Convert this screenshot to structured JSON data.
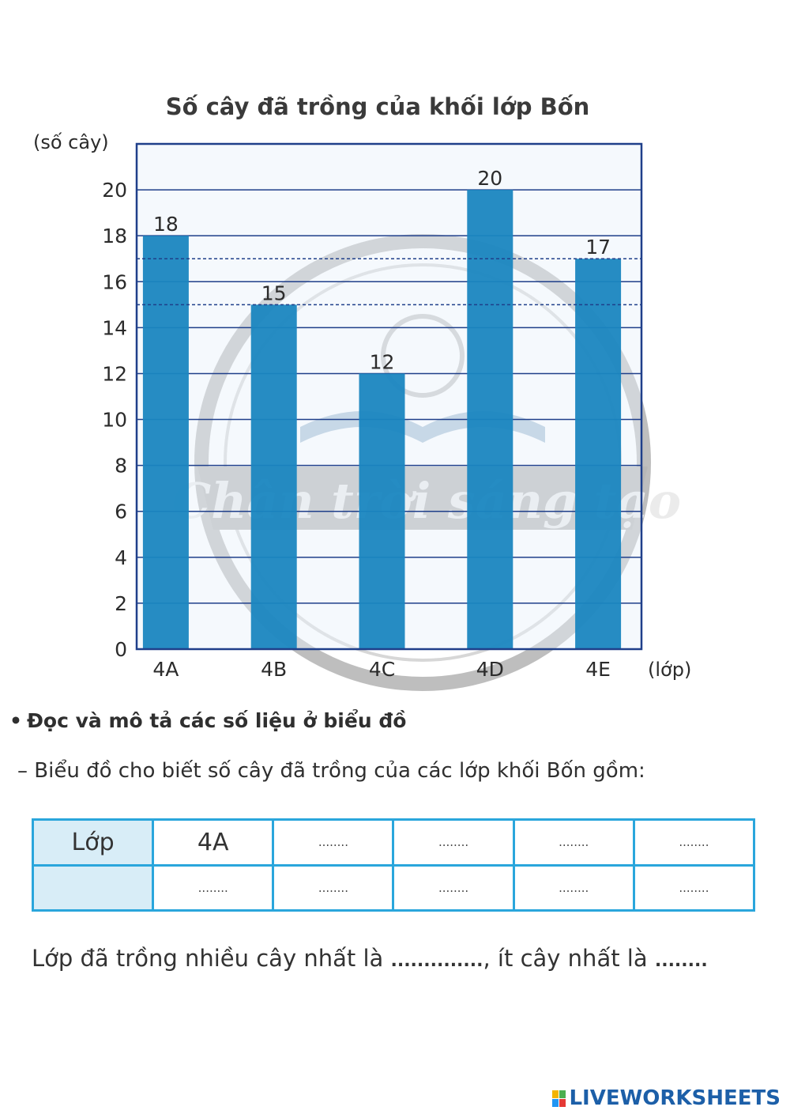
{
  "chart_data": {
    "type": "bar",
    "title": "Số cây đã trồng của khối lớp Bốn",
    "ylabel": "(số cây)",
    "xlabel": "(lớp)",
    "categories": [
      "4A",
      "4B",
      "4C",
      "4D",
      "4E"
    ],
    "values": [
      18,
      15,
      12,
      20,
      17
    ],
    "ylim": [
      0,
      22
    ],
    "yticks": [
      0,
      2,
      4,
      6,
      8,
      10,
      12,
      14,
      16,
      18,
      20
    ],
    "grid": true,
    "reference_lines": [
      17,
      15
    ],
    "bar_color": "#1a86c0",
    "plot_background": "#e8f2fa",
    "grid_color": "#1f3f8a"
  },
  "watermark_text": "Chân trời sáng tạo",
  "section": {
    "bullet": "•",
    "heading": "Đọc và mô tả các số liệu ở biểu đồ",
    "line": "– Biểu đồ cho biết số cây đã trồng của các lớp khối Bốn gồm:"
  },
  "table": {
    "row1": [
      "Lớp",
      "4A",
      "........",
      "........",
      "........",
      "........"
    ],
    "row2": [
      "",
      "........",
      "........",
      "........",
      "........",
      "........"
    ]
  },
  "answer": {
    "part1": "Lớp đã trồng nhiều cây nhất là ",
    "blank1": "..............",
    "part2": ", ít cây nhất là ",
    "blank2": "........"
  },
  "footer": {
    "brand": "LIVEWORKSHEETS",
    "brand_color": "#1c5fa8"
  }
}
